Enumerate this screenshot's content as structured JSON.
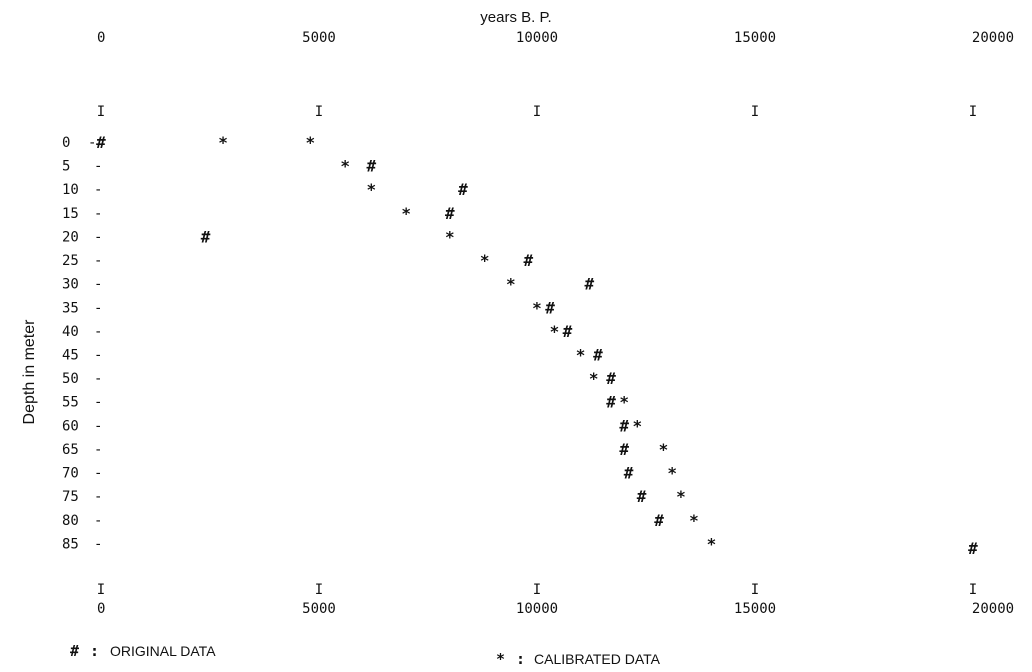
{
  "chart_data": {
    "type": "scatter",
    "title": "years B. P.",
    "ylabel": "Depth in meter",
    "x_tick_labels": [
      "0",
      "5000",
      "10000",
      "15000",
      "20000"
    ],
    "x_tick_marker": "I",
    "y_tick_labels": [
      "0",
      "5",
      "10",
      "15",
      "20",
      "25",
      "30",
      "35",
      "40",
      "45",
      "50",
      "55",
      "60",
      "65",
      "70",
      "75",
      "80",
      "85"
    ],
    "y_tick_marker": "-",
    "xlim": [
      0,
      20000
    ],
    "ylim": [
      0,
      90
    ],
    "y_inverted": true,
    "series": [
      {
        "name": "ORIGINAL DATA",
        "symbol": "#",
        "points": [
          {
            "x": 0,
            "y": 0
          },
          {
            "x": 6200,
            "y": 5
          },
          {
            "x": 8300,
            "y": 10
          },
          {
            "x": 8000,
            "y": 15
          },
          {
            "x": 2400,
            "y": 20
          },
          {
            "x": 9800,
            "y": 25
          },
          {
            "x": 11200,
            "y": 30
          },
          {
            "x": 10300,
            "y": 35
          },
          {
            "x": 10700,
            "y": 40
          },
          {
            "x": 11400,
            "y": 45
          },
          {
            "x": 11700,
            "y": 50
          },
          {
            "x": 11700,
            "y": 55
          },
          {
            "x": 12000,
            "y": 60
          },
          {
            "x": 12000,
            "y": 65
          },
          {
            "x": 12100,
            "y": 70
          },
          {
            "x": 12400,
            "y": 75
          },
          {
            "x": 12800,
            "y": 80
          },
          {
            "x": 20000,
            "y": 86
          }
        ]
      },
      {
        "name": "CALIBRATED DATA",
        "symbol": "*",
        "points": [
          {
            "x": 2800,
            "y": 0
          },
          {
            "x": 4800,
            "y": 0
          },
          {
            "x": 5600,
            "y": 5
          },
          {
            "x": 6200,
            "y": 10
          },
          {
            "x": 7000,
            "y": 15
          },
          {
            "x": 8000,
            "y": 20
          },
          {
            "x": 8800,
            "y": 25
          },
          {
            "x": 9400,
            "y": 30
          },
          {
            "x": 10000,
            "y": 35
          },
          {
            "x": 10400,
            "y": 40
          },
          {
            "x": 11000,
            "y": 45
          },
          {
            "x": 11300,
            "y": 50
          },
          {
            "x": 12000,
            "y": 55
          },
          {
            "x": 12300,
            "y": 60
          },
          {
            "x": 12900,
            "y": 65
          },
          {
            "x": 13100,
            "y": 70
          },
          {
            "x": 13300,
            "y": 75
          },
          {
            "x": 13600,
            "y": 80
          },
          {
            "x": 14000,
            "y": 85
          }
        ]
      }
    ],
    "legend": [
      {
        "symbol": "#",
        "separator": ":",
        "label": "ORIGINAL DATA"
      },
      {
        "symbol": "*",
        "separator": ":",
        "label": "CALIBRATED DATA"
      }
    ],
    "legend_position": "bottom"
  }
}
